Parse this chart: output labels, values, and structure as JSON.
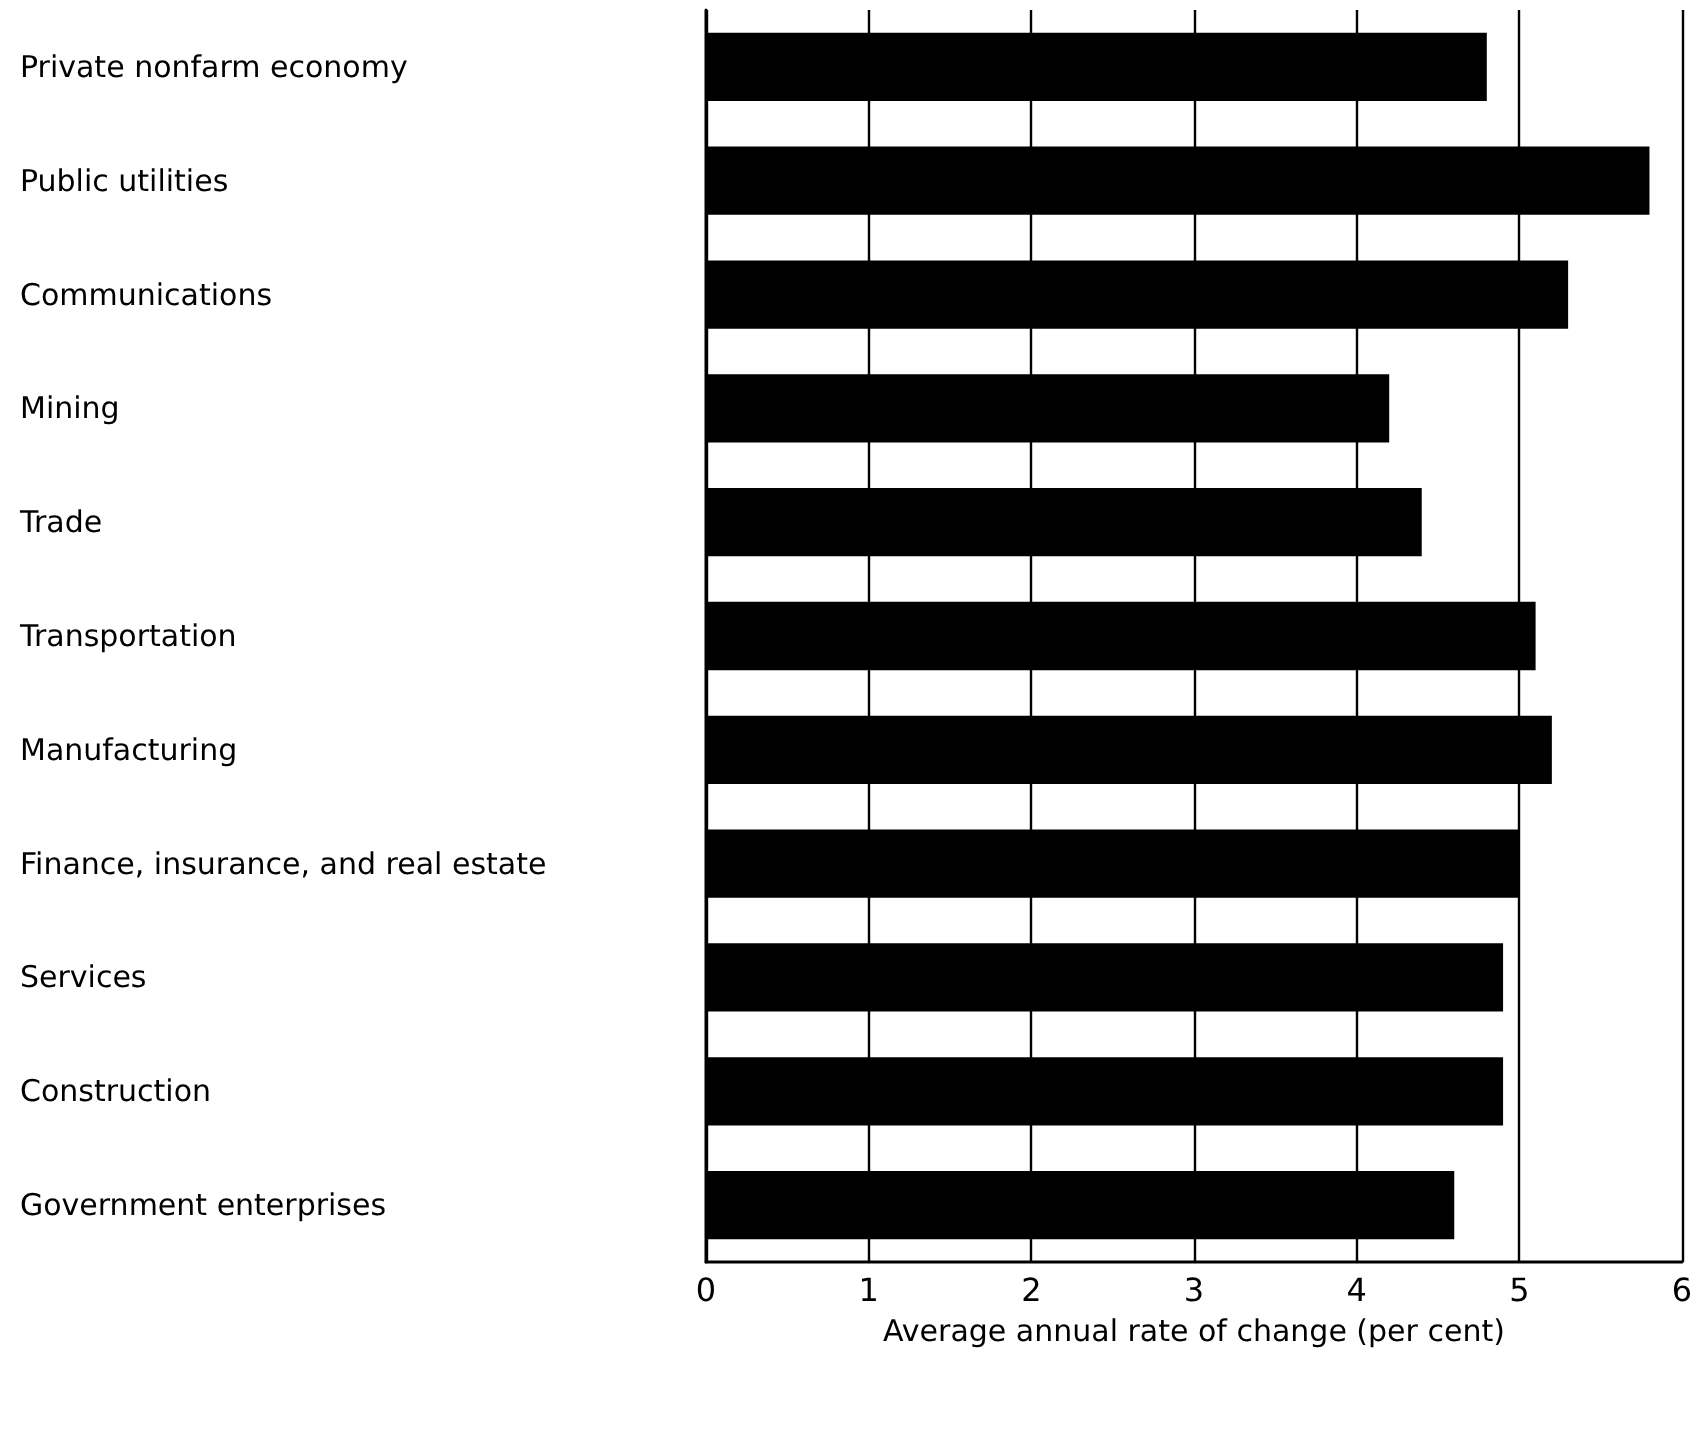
{
  "chart_data": {
    "type": "bar",
    "orientation": "horizontal",
    "categories": [
      "Private nonfarm economy",
      "Public utilities",
      "Communications",
      "Mining",
      "Trade",
      "Transportation",
      "Manufacturing",
      "Finance, insurance, and real estate",
      "Services",
      "Construction",
      "Government enterprises"
    ],
    "values": [
      4.8,
      5.8,
      5.3,
      4.2,
      4.4,
      5.1,
      5.2,
      5.0,
      4.9,
      4.9,
      4.6
    ],
    "color": "#000000",
    "xlabel": "Average annual rate of change (per cent)",
    "xlim": [
      0,
      6
    ],
    "xticks": [
      0,
      1,
      2,
      3,
      4,
      5,
      6
    ],
    "grid": "x"
  }
}
